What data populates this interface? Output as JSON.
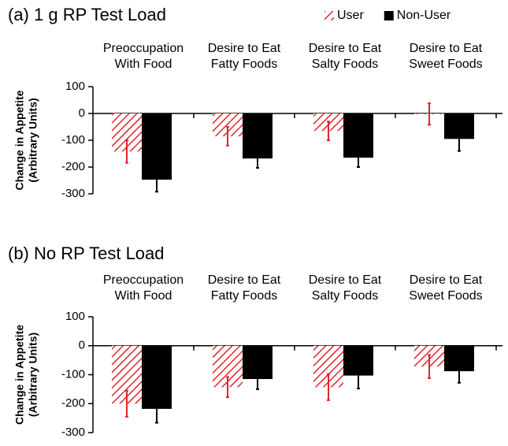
{
  "chart_data": [
    {
      "type": "bar",
      "title": "(a) 1 g RP Test Load",
      "categories": [
        [
          "Preoccupation",
          "With Food"
        ],
        [
          "Desire to Eat",
          "Fatty Foods"
        ],
        [
          "Desire to Eat",
          "Salty Foods"
        ],
        [
          "Desire to Eat",
          "Sweet Foods"
        ]
      ],
      "y_label": [
        "Change in Appetite",
        "(Arbitrary Units)"
      ],
      "ylim": [
        -300,
        100
      ],
      "yticks": [
        100,
        0,
        -100,
        -200,
        -300
      ],
      "legend": "upper right",
      "series": [
        {
          "name": "User",
          "color": "#e3242b",
          "hatch": true,
          "values": [
            -142,
            -85,
            -65,
            -2
          ],
          "errors": [
            42,
            35,
            35,
            40
          ]
        },
        {
          "name": "Non-User",
          "color": "#000000",
          "hatch": false,
          "values": [
            -247,
            -168,
            -165,
            -95
          ],
          "errors": [
            45,
            35,
            35,
            45
          ]
        }
      ]
    },
    {
      "type": "bar",
      "title": "(b) No RP Test Load",
      "categories": [
        [
          "Preoccupation",
          "With Food"
        ],
        [
          "Desire to Eat",
          "Fatty Foods"
        ],
        [
          "Desire to Eat",
          "Salty Foods"
        ],
        [
          "Desire to Eat",
          "Sweet Foods"
        ]
      ],
      "y_label": [
        "Change in Appetite",
        "(Arbitrary Units)"
      ],
      "ylim": [
        -300,
        100
      ],
      "yticks": [
        100,
        0,
        -100,
        -200,
        -300
      ],
      "series": [
        {
          "color": "#e3242b",
          "hatch": true,
          "values": [
            -200,
            -143,
            -143,
            -72
          ],
          "errors": [
            45,
            35,
            45,
            40
          ]
        },
        {
          "color": "#000000",
          "hatch": false,
          "values": [
            -218,
            -115,
            -103,
            -88
          ],
          "errors": [
            48,
            35,
            45,
            40
          ]
        }
      ]
    }
  ]
}
